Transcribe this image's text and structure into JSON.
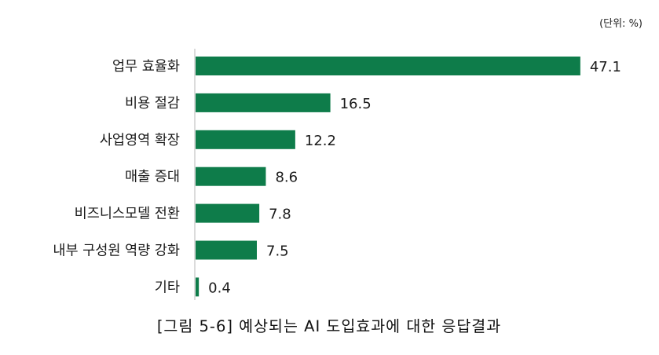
{
  "chart_data": {
    "type": "bar",
    "orientation": "horizontal",
    "categories": [
      "업무 효율화",
      "비용 절감",
      "사업영역 확장",
      "매출 증대",
      "비즈니스모델 전환",
      "내부 구성원 역량 강화",
      "기타"
    ],
    "values": [
      47.1,
      16.5,
      12.2,
      8.6,
      7.8,
      7.5,
      0.4
    ],
    "value_labels": [
      "47.1",
      "16.5",
      "12.2",
      "8.6",
      "7.8",
      "7.5",
      "0.4"
    ],
    "unit": "(단위: %)",
    "title": "[그림 5-6] 예상되는 AI 도입효과에 대한 응답결과",
    "xlim": [
      0,
      50
    ],
    "grid": false,
    "legend": false,
    "bar_color": "#0e7c4a",
    "axis_color": "#cfcfcf"
  }
}
